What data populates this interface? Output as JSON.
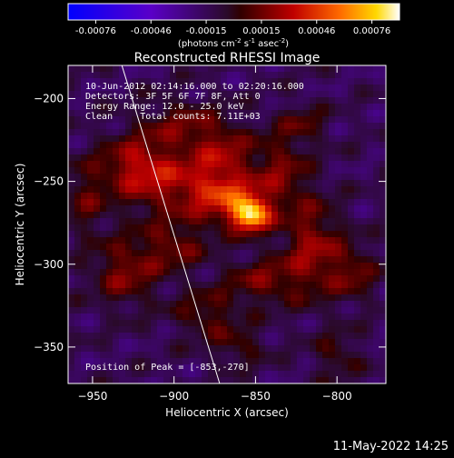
{
  "colorbar": {
    "ticks": [
      "-0.00076",
      "-0.00046",
      "-0.00015",
      "0.00015",
      "0.00046",
      "0.00076"
    ],
    "unit_main": "(photons cm",
    "unit_exp1": "-2",
    "unit_mid": " s",
    "unit_exp2": "-1",
    "unit_mid2": " asec",
    "unit_exp3": "-2",
    "unit_end": ")"
  },
  "colors": {
    "background": "#000000",
    "text": "#ffffff",
    "limb_line": "#ffffff"
  },
  "footer": {
    "timestamp": "11-May-2022 14:25"
  },
  "chart_data": {
    "type": "heatmap",
    "title": "Reconstructed RHESSI Image",
    "xlabel": "Heliocentric X (arcsec)",
    "ylabel": "Heliocentric Y (arcsec)",
    "xlim": [
      -965,
      -770
    ],
    "ylim": [
      -372,
      -180
    ],
    "xticks": [
      -950,
      -900,
      -850,
      -800
    ],
    "yticks": [
      -200,
      -250,
      -300,
      -350
    ],
    "xtick_labels": [
      "−950",
      "−900",
      "−850",
      "−800"
    ],
    "ytick_labels": [
      "−200",
      "−250",
      "−300",
      "−350"
    ],
    "colorscale": {
      "min": -0.00076,
      "max": 0.00076,
      "map": "blue-purple-red-yellow-white"
    },
    "annotations": {
      "time_range": "10-Jun-2012 02:14:16.000 to 02:20:16.000",
      "detectors": "Detectors: 3F 5F 6F 7F 8F, Att 0",
      "energy": "Energy Range: 12.0 - 25.0 keV",
      "clean": "Clean     Total counts: 7.11E+03",
      "peak": "Position of Peak = [-853,-270]"
    },
    "peak": {
      "x": -853,
      "y": -270
    },
    "sources": [
      {
        "x": -853,
        "y": -270,
        "sx": 8,
        "sy": 7,
        "amp": 0.00072
      },
      {
        "x": -868,
        "y": -258,
        "sx": 14,
        "sy": 12,
        "amp": 0.00038
      },
      {
        "x": -900,
        "y": -250,
        "sx": 22,
        "sy": 16,
        "amp": 0.0003
      },
      {
        "x": -925,
        "y": -240,
        "sx": 14,
        "sy": 12,
        "amp": 0.00026
      },
      {
        "x": -895,
        "y": -215,
        "sx": 18,
        "sy": 10,
        "amp": 0.0002
      },
      {
        "x": -870,
        "y": -230,
        "sx": 12,
        "sy": 10,
        "amp": 0.00022
      },
      {
        "x": -835,
        "y": -245,
        "sx": 12,
        "sy": 18,
        "amp": 0.00024
      },
      {
        "x": -815,
        "y": -290,
        "sx": 12,
        "sy": 20,
        "amp": 0.0003
      },
      {
        "x": -790,
        "y": -305,
        "sx": 10,
        "sy": 12,
        "amp": 0.00022
      },
      {
        "x": -845,
        "y": -310,
        "sx": 16,
        "sy": 10,
        "amp": 0.00024
      },
      {
        "x": -880,
        "y": -330,
        "sx": 14,
        "sy": 10,
        "amp": 0.0002
      },
      {
        "x": -930,
        "y": -305,
        "sx": 14,
        "sy": 14,
        "amp": 0.00026
      },
      {
        "x": -955,
        "y": -260,
        "sx": 10,
        "sy": 16,
        "amp": 0.00018
      },
      {
        "x": -900,
        "y": -290,
        "sx": 14,
        "sy": 10,
        "amp": 0.00022
      },
      {
        "x": -860,
        "y": -350,
        "sx": 12,
        "sy": 8,
        "amp": 0.00016
      },
      {
        "x": -800,
        "y": -355,
        "sx": 10,
        "sy": 10,
        "amp": 0.00016
      },
      {
        "x": -820,
        "y": -215,
        "sx": 10,
        "sy": 8,
        "amp": 0.00016
      }
    ],
    "limb": [
      [
        -932,
        -180
      ],
      [
        -872,
        -372
      ]
    ]
  }
}
